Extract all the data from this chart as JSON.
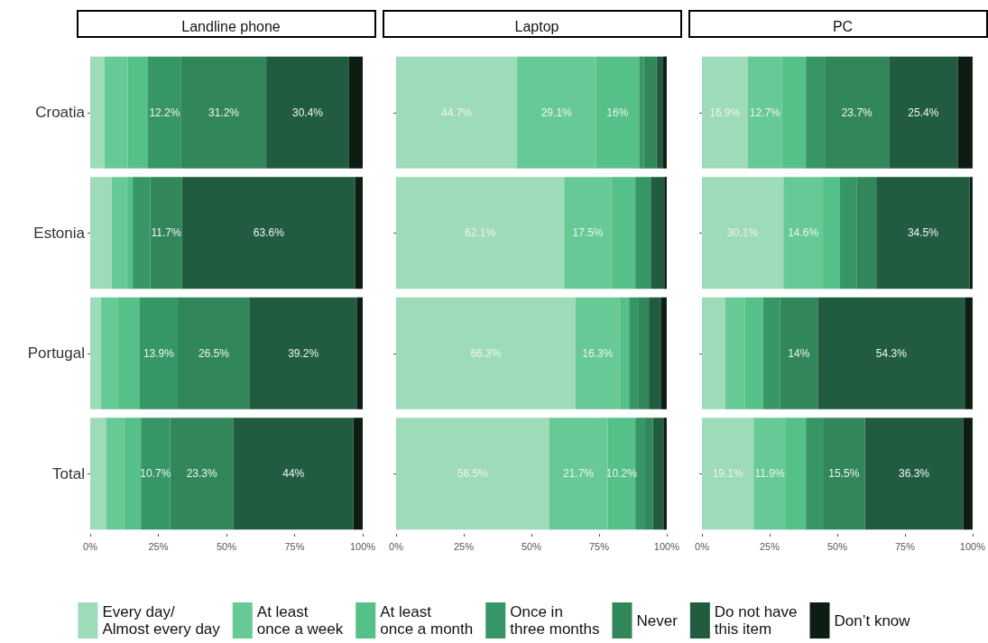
{
  "chart_data": [
    {
      "type": "bar",
      "title": "Landline phone",
      "orientation": "horizontal",
      "stacked": true,
      "legend": "bottom",
      "categories": [
        "Croatia",
        "Estonia",
        "Portugal",
        "Total"
      ],
      "xlim": [
        0,
        100
      ],
      "xticks": [
        {
          "value": 0,
          "label": "0%"
        },
        {
          "value": 25,
          "label": "25%"
        },
        {
          "value": 50,
          "label": "50%"
        },
        {
          "value": 75,
          "label": "75%"
        },
        {
          "value": 100,
          "label": "100%"
        }
      ],
      "series": [
        {
          "name": "Every day/ Almost every day",
          "color": "#9ddbb9",
          "values": [
            5.2,
            7.9,
            3.9,
            5.9
          ],
          "value_labels": [
            null,
            null,
            null,
            null
          ]
        },
        {
          "name": "At least once a week",
          "color": "#67c995",
          "values": [
            8.6,
            5.5,
            6.1,
            6.6
          ],
          "value_labels": [
            null,
            null,
            null,
            null
          ]
        },
        {
          "name": "At least once a month",
          "color": "#55c088",
          "values": [
            7.4,
            2.2,
            8.2,
            6.1
          ],
          "value_labels": [
            null,
            null,
            null,
            null
          ]
        },
        {
          "name": "Once in three months",
          "color": "#379666",
          "values": [
            12.2,
            6.4,
            13.9,
            10.7
          ],
          "value_labels": [
            "12.2%",
            null,
            "13.9%",
            "10.7%"
          ]
        },
        {
          "name": "Never",
          "color": "#31875a",
          "values": [
            31.2,
            11.7,
            26.5,
            23.3
          ],
          "value_labels": [
            "31.2%",
            "11.7%",
            "26.5%",
            "23.3%"
          ]
        },
        {
          "name": "Do not have this item",
          "color": "#225c40",
          "values": [
            30.4,
            63.6,
            39.2,
            44
          ],
          "value_labels": [
            "30.4%",
            "63.6%",
            "39.2%",
            "44%"
          ]
        },
        {
          "name": "Don’t know",
          "color": "#0d1d13",
          "values": [
            5.0,
            2.7,
            2.2,
            3.4
          ],
          "value_labels": [
            null,
            null,
            null,
            null
          ]
        }
      ]
    },
    {
      "type": "bar",
      "title": "Laptop",
      "orientation": "horizontal",
      "stacked": true,
      "tick_labels": "x",
      "categories": [
        null,
        null,
        null,
        null
      ],
      "xlim": [
        0,
        100
      ],
      "xticks": [
        {
          "value": 0,
          "label": "0%"
        },
        {
          "value": 25,
          "label": "25%"
        },
        {
          "value": 50,
          "label": "50%"
        },
        {
          "value": 75,
          "label": "75%"
        },
        {
          "value": 100,
          "label": "100%"
        }
      ],
      "series": [
        {
          "color": "#9ddbb9",
          "values": [
            44.7,
            62.1,
            66.3,
            56.5
          ],
          "value_labels": [
            "44.7%",
            "62.1%",
            "66.3%",
            "56.5%"
          ]
        },
        {
          "color": "#67c995",
          "values": [
            29.1,
            17.5,
            16.3,
            21.7
          ],
          "value_labels": [
            "29.1%",
            "17.5%",
            "16.3%",
            "21.7%"
          ]
        },
        {
          "color": "#55c088",
          "values": [
            16,
            8.8,
            3.5,
            10.2
          ],
          "value_labels": [
            "16%",
            null,
            null,
            "10.2%"
          ]
        },
        {
          "color": "#379666",
          "values": [
            1.8,
            5.7,
            3.3,
            3.6
          ],
          "value_labels": [
            null,
            null,
            null,
            null
          ]
        },
        {
          "color": "#31875a",
          "values": [
            4.6,
            0,
            4.0,
            2.9
          ],
          "value_labels": [
            null,
            null,
            null,
            null
          ]
        },
        {
          "color": "#225c40",
          "values": [
            2.5,
            5.0,
            4.6,
            3.9
          ],
          "value_labels": [
            null,
            null,
            null,
            null
          ]
        },
        {
          "color": "#0d1d13",
          "values": [
            1.3,
            0.9,
            2.0,
            1.2
          ],
          "value_labels": [
            null,
            null,
            null,
            null
          ]
        }
      ]
    },
    {
      "type": "bar",
      "title": "PC",
      "orientation": "horizontal",
      "stacked": true,
      "tick_labels": "x",
      "categories": [
        null,
        null,
        null,
        null
      ],
      "xlim": [
        0,
        100
      ],
      "xticks": [
        {
          "value": 0,
          "label": "0%"
        },
        {
          "value": 25,
          "label": "25%"
        },
        {
          "value": 50,
          "label": "50%"
        },
        {
          "value": 75,
          "label": "75%"
        },
        {
          "value": 100,
          "label": "100%"
        }
      ],
      "series": [
        {
          "color": "#9ddbb9",
          "values": [
            16.9,
            30.1,
            8.6,
            19.1
          ],
          "value_labels": [
            "16.9%",
            "30.1%",
            null,
            "19.1%"
          ]
        },
        {
          "color": "#67c995",
          "values": [
            12.7,
            14.6,
            7.2,
            11.9
          ],
          "value_labels": [
            "12.7%",
            "14.6%",
            null,
            "11.9%"
          ]
        },
        {
          "color": "#55c088",
          "values": [
            8.8,
            6.3,
            6.8,
            7.4
          ],
          "value_labels": [
            null,
            null,
            null,
            null
          ]
        },
        {
          "color": "#379666",
          "values": [
            7.0,
            6.1,
            6.2,
            6.3
          ],
          "value_labels": [
            null,
            null,
            null,
            null
          ]
        },
        {
          "color": "#31875a",
          "values": [
            23.7,
            7.3,
            14,
            15.5
          ],
          "value_labels": [
            "23.7%",
            null,
            "14%",
            "15.5%"
          ]
        },
        {
          "color": "#225c40",
          "values": [
            25.4,
            34.5,
            54.3,
            36.3
          ],
          "value_labels": [
            "25.4%",
            "34.5%",
            "54.3%",
            "36.3%"
          ]
        },
        {
          "color": "#0d1d13",
          "values": [
            5.5,
            1.1,
            2.9,
            3.5
          ],
          "value_labels": [
            null,
            null,
            null,
            null
          ]
        }
      ]
    }
  ]
}
